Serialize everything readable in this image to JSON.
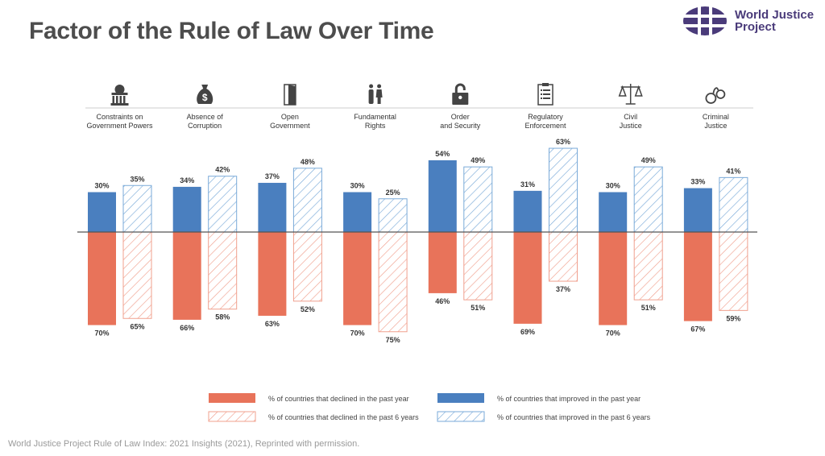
{
  "title": "Factor of the Rule of Law Over Time",
  "logo": {
    "line1": "World Justice",
    "line2": "Project",
    "color": "#4a3b7a"
  },
  "source": "World Justice Project Rule of Law Index: 2021 Insights (2021), Reprinted with permission.",
  "colors": {
    "declined": "#e8735a",
    "improved": "#4a7fbf"
  },
  "chart_data": {
    "type": "bar",
    "title": "",
    "categories": [
      {
        "line1": "Constraints on",
        "line2": "Government Powers",
        "icon": "capitol-building-icon"
      },
      {
        "line1": "Absence of",
        "line2": "Corruption",
        "icon": "money-bag-icon"
      },
      {
        "line1": "Open",
        "line2": "Government",
        "icon": "open-door-icon"
      },
      {
        "line1": "Fundamental",
        "line2": "Rights",
        "icon": "people-icon"
      },
      {
        "line1": "Order",
        "line2": "and Security",
        "icon": "unlocked-padlock-icon"
      },
      {
        "line1": "Regulatory",
        "line2": "Enforcement",
        "icon": "clipboard-icon"
      },
      {
        "line1": "Civil",
        "line2": "Justice",
        "icon": "scales-icon"
      },
      {
        "line1": "Criminal",
        "line2": "Justice",
        "icon": "handcuffs-icon"
      }
    ],
    "series": [
      {
        "name": "% of countries that improved in the past year",
        "values": [
          30,
          34,
          37,
          30,
          54,
          31,
          30,
          33
        ],
        "direction": "up",
        "pattern": "solid",
        "color": "#4a7fbf"
      },
      {
        "name": "% of countries that improved in the past 6 years",
        "values": [
          35,
          42,
          48,
          25,
          49,
          63,
          49,
          41
        ],
        "direction": "up",
        "pattern": "hatched",
        "color": "#4a7fbf"
      },
      {
        "name": "% of countries that declined in the past year",
        "values": [
          70,
          66,
          63,
          70,
          46,
          69,
          70,
          67
        ],
        "direction": "down",
        "pattern": "solid",
        "color": "#e8735a"
      },
      {
        "name": "% of countries that declined in the past 6 years",
        "values": [
          65,
          58,
          52,
          75,
          51,
          37,
          51,
          59
        ],
        "direction": "down",
        "pattern": "hatched",
        "color": "#e8735a"
      }
    ],
    "value_suffix": "%",
    "legend_position": "bottom"
  }
}
